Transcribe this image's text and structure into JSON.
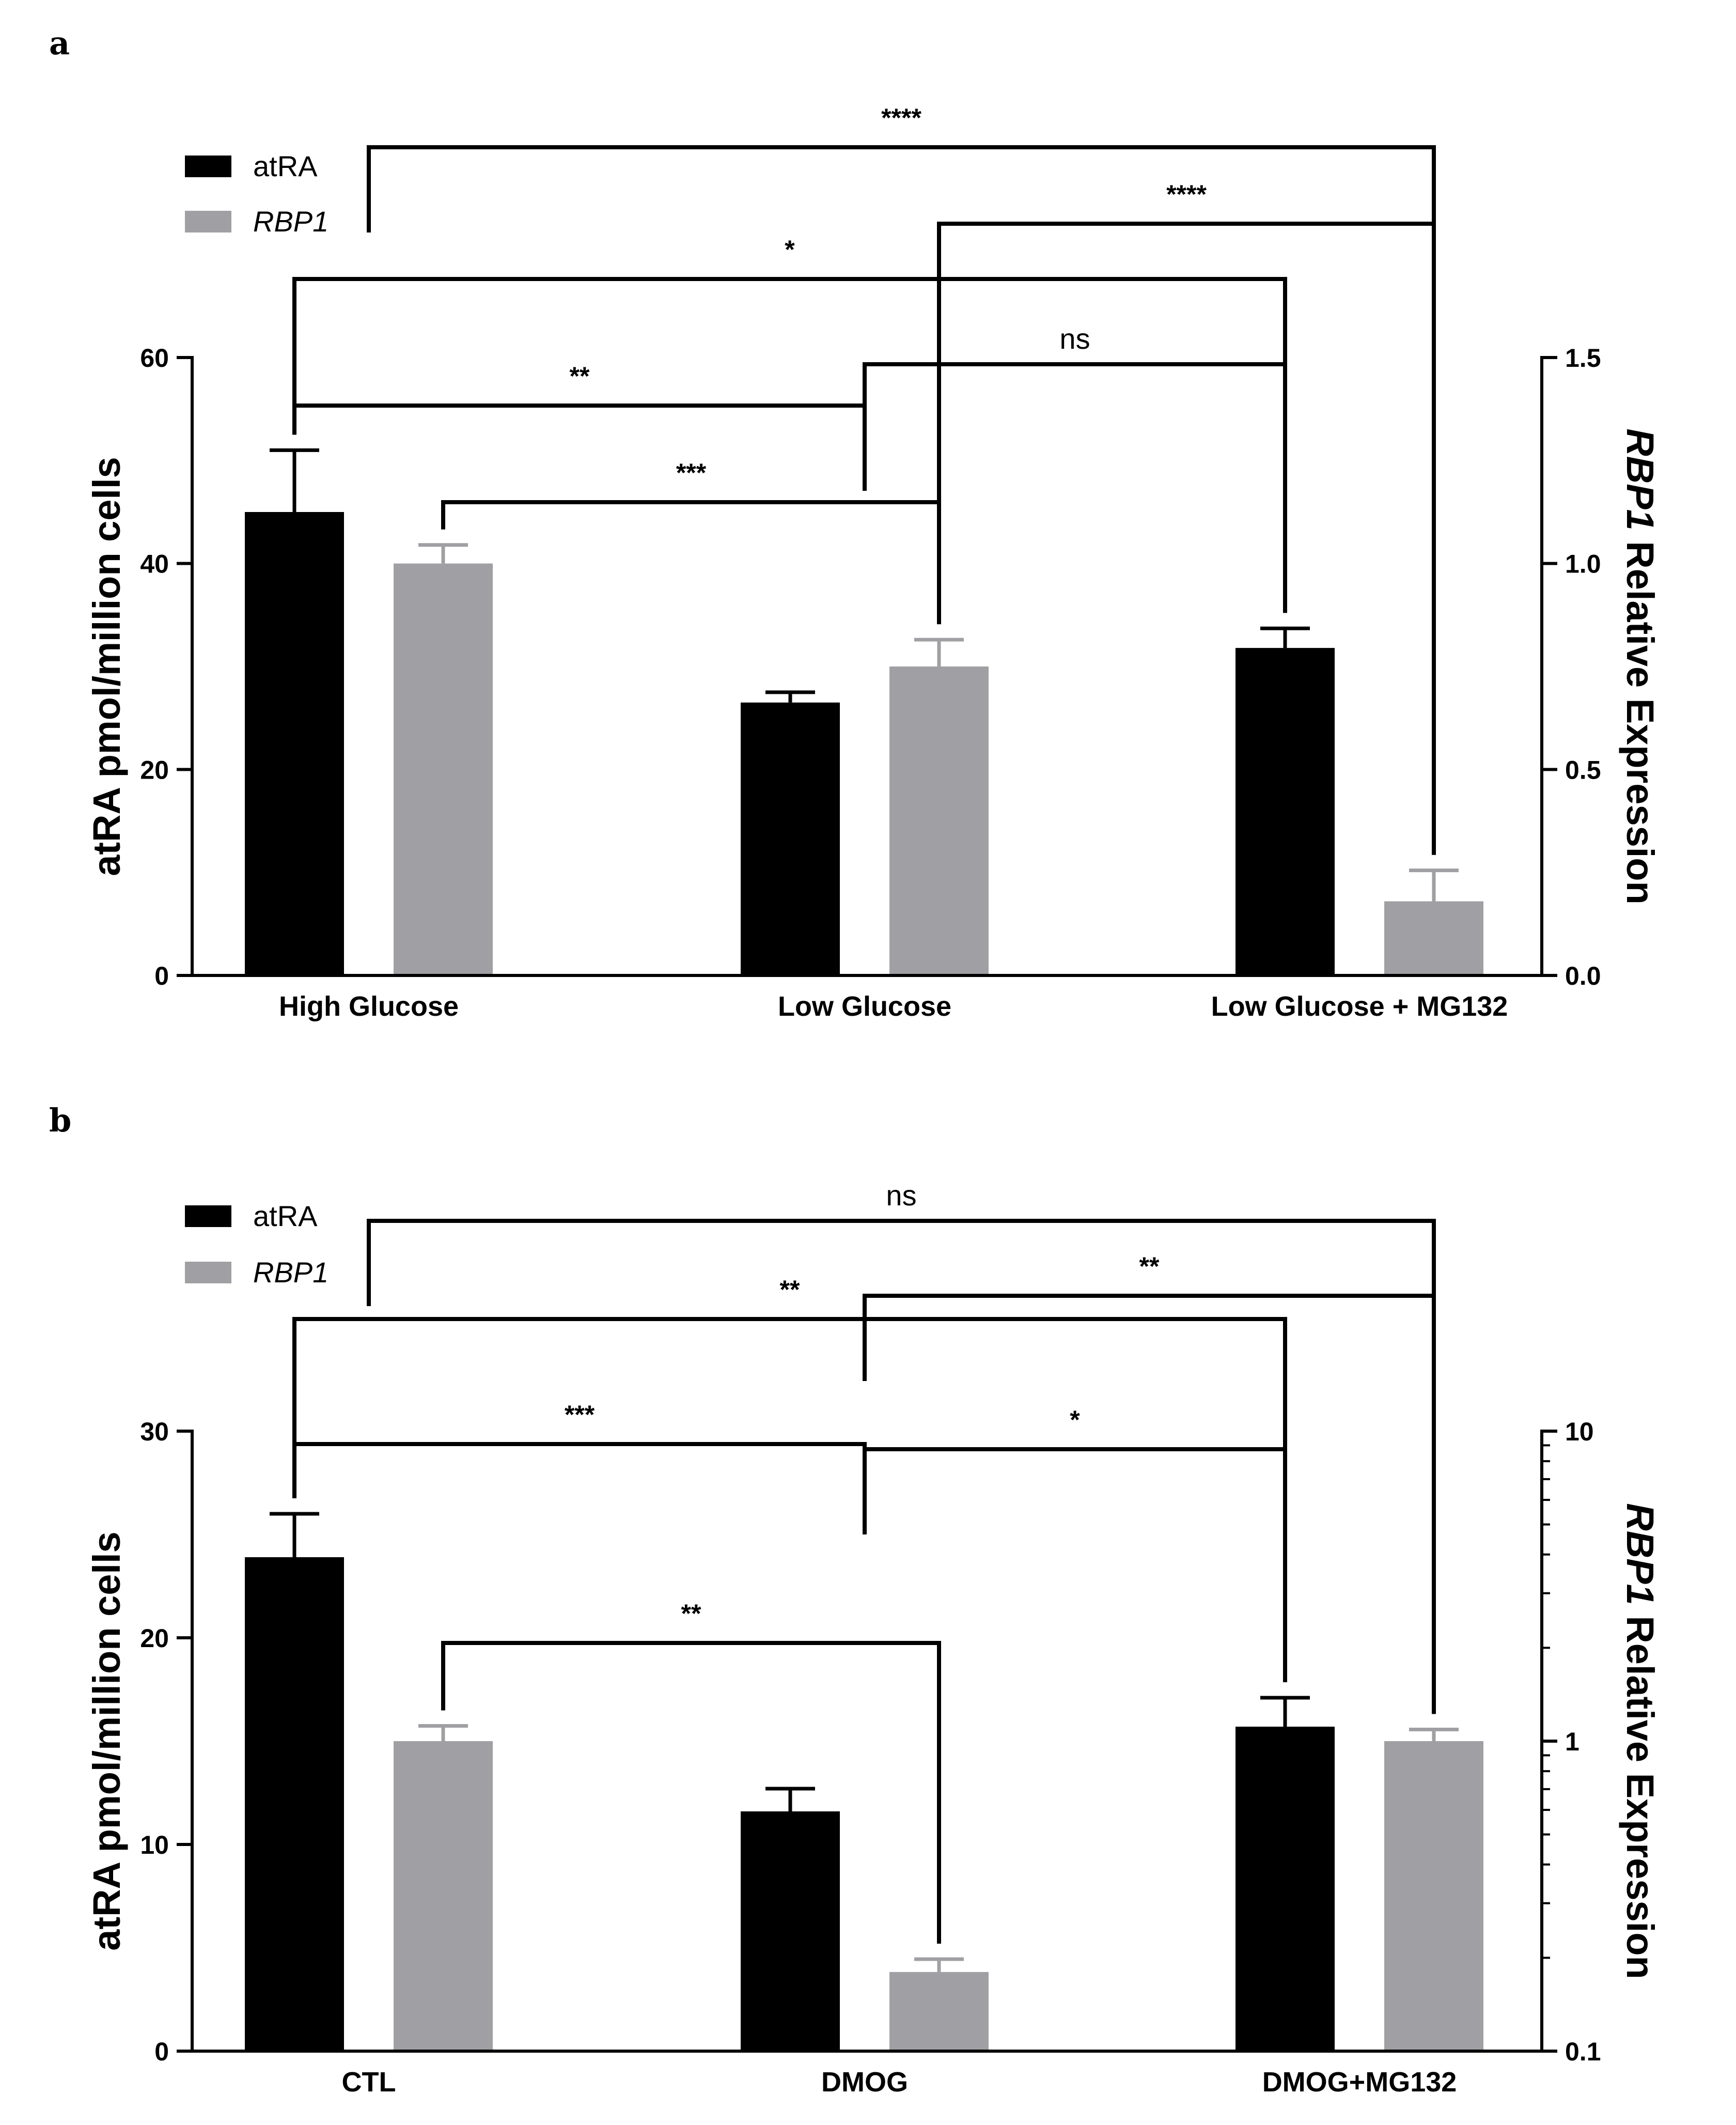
{
  "colors": {
    "atra": "#000000",
    "rbp1": "#a0a0a4",
    "axis": "#000000"
  },
  "chart_data": [
    {
      "panel": "a",
      "type": "bar",
      "categories": [
        "High Glucose",
        "Low Glucose",
        "Low Glucose + MG132"
      ],
      "series": [
        {
          "name": "atRA",
          "axis": "left",
          "values": [
            45,
            26.5,
            31.8
          ],
          "errors": [
            6,
            1,
            1.9
          ]
        },
        {
          "name": "RBP1",
          "axis": "right",
          "values": [
            1.0,
            0.75,
            0.18
          ],
          "errors": [
            0.045,
            0.065,
            0.075
          ]
        }
      ],
      "ylabel": "atRA pmol/million cells",
      "ylabel_right_italic": "RBP1",
      "ylabel_right_rest": " Relative Expression",
      "ylim": [
        0,
        60
      ],
      "yticks": [
        "0",
        "20",
        "40",
        "60"
      ],
      "ylim_right": [
        0,
        1.5
      ],
      "yscale_right": "linear",
      "yticks_right": [
        "0.0",
        "0.5",
        "1.0",
        "1.5"
      ],
      "significance": [
        {
          "label": "**",
          "from": [
            0,
            "atRA"
          ],
          "to": [
            1,
            "mid"
          ]
        },
        {
          "label": "***",
          "from": [
            0,
            "RBP1"
          ],
          "to": [
            1,
            "RBP1"
          ]
        },
        {
          "label": "ns",
          "from": [
            1,
            "mid"
          ],
          "to": [
            2,
            "atRA"
          ]
        },
        {
          "label": "*",
          "from": [
            0,
            "atRA"
          ],
          "to": [
            2,
            "atRA"
          ]
        },
        {
          "label": "****",
          "from": [
            1,
            "RBP1"
          ],
          "to": [
            2,
            "RBP1"
          ]
        },
        {
          "label": "****",
          "from": [
            0,
            "mid"
          ],
          "to": [
            2,
            "RBP1"
          ]
        }
      ],
      "legend": [
        {
          "name": "atRA",
          "italic": false
        },
        {
          "name": "RBP1",
          "italic": true
        }
      ],
      "legend_position": "top-left"
    },
    {
      "panel": "b",
      "type": "bar",
      "categories": [
        "CTL",
        "DMOG",
        "DMOG+MG132"
      ],
      "series": [
        {
          "name": "atRA",
          "axis": "left",
          "values": [
            23.9,
            11.6,
            15.7
          ],
          "errors": [
            2.1,
            1.1,
            1.4
          ]
        },
        {
          "name": "RBP1",
          "axis": "right",
          "values": [
            1.0,
            0.18,
            1.0
          ],
          "errors": [
            0.12,
            0.018,
            0.09
          ]
        }
      ],
      "ylabel": "atRA pmol/million cells",
      "ylabel_right_italic": "RBP1",
      "ylabel_right_rest": " Relative Expression",
      "ylim": [
        0,
        30
      ],
      "yticks": [
        "0",
        "10",
        "20",
        "30"
      ],
      "ylim_right": [
        0.1,
        10
      ],
      "yscale_right": "log",
      "yticks_right": [
        "0.1",
        "1",
        "10"
      ],
      "significance": [
        {
          "label": "***",
          "from": [
            0,
            "atRA"
          ],
          "to": [
            1,
            "mid"
          ]
        },
        {
          "label": "**",
          "from": [
            0,
            "RBP1"
          ],
          "to": [
            1,
            "RBP1"
          ]
        },
        {
          "label": "*",
          "from": [
            1,
            "mid"
          ],
          "to": [
            2,
            "atRA"
          ]
        },
        {
          "label": "**",
          "from": [
            0,
            "atRA"
          ],
          "to": [
            2,
            "atRA"
          ]
        },
        {
          "label": "**",
          "from": [
            1,
            "mid"
          ],
          "to": [
            2,
            "RBP1"
          ]
        },
        {
          "label": "ns",
          "from": [
            0,
            "mid"
          ],
          "to": [
            2,
            "RBP1"
          ]
        }
      ],
      "legend": [
        {
          "name": "atRA",
          "italic": false
        },
        {
          "name": "RBP1",
          "italic": true
        }
      ],
      "legend_position": "top-left"
    }
  ]
}
